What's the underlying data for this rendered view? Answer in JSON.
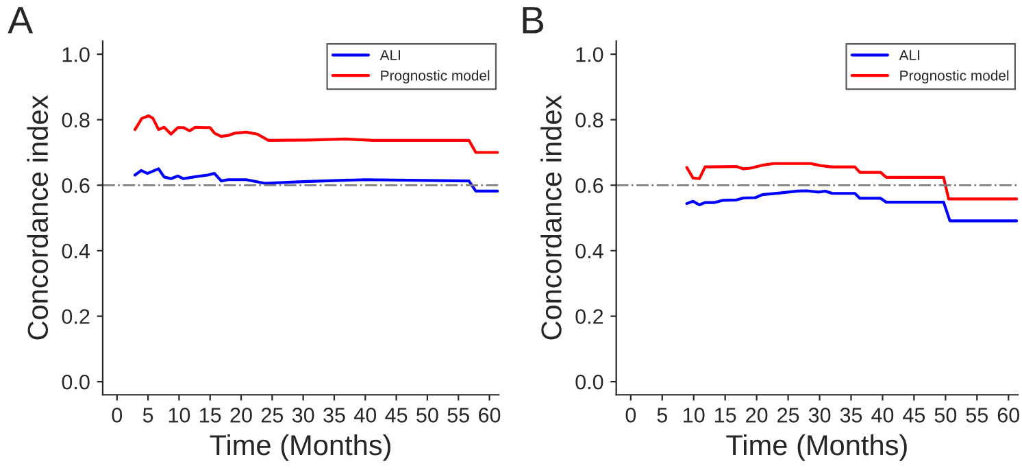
{
  "chart_data": [
    {
      "type": "line",
      "title": "A",
      "xlabel": "Time (Months)",
      "ylabel": "Concordance index",
      "xlim": [
        -2.3,
        61.5
      ],
      "xticks": [
        0,
        5,
        10,
        15,
        20,
        25,
        30,
        35,
        40,
        45,
        50,
        55,
        60
      ],
      "ylim": [
        -0.04,
        1.04
      ],
      "yticks": [
        {
          "value": 0,
          "label": "0.0"
        },
        {
          "value": 0.2,
          "label": "0.2"
        },
        {
          "value": 0.4,
          "label": "0.4"
        },
        {
          "value": 0.6,
          "label": "0.6"
        },
        {
          "value": 0.8,
          "label": "0.8"
        },
        {
          "value": 1.0,
          "label": "1.0"
        }
      ],
      "grid": false,
      "legend": "top right",
      "marker": "none",
      "line_style": "solid",
      "ref_lines": [
        {
          "axis": "y",
          "value": 0.6,
          "color": "#808080",
          "line_style": "dashdot"
        }
      ],
      "series": [
        {
          "name": "ALI",
          "color": "#0000ff",
          "x": [
            2.9,
            3.9,
            4.9,
            6.7,
            7.6,
            8.7,
            9.8,
            10.7,
            12.7,
            14.6,
            15.7,
            16.8,
            17.9,
            20.8,
            23.8,
            30,
            40,
            56.7,
            57.8,
            61.3
          ],
          "values": [
            0.631,
            0.645,
            0.636,
            0.65,
            0.625,
            0.62,
            0.628,
            0.62,
            0.626,
            0.631,
            0.636,
            0.613,
            0.617,
            0.617,
            0.606,
            0.611,
            0.617,
            0.613,
            0.582,
            0.582
          ]
        },
        {
          "name": "Prognostic model",
          "color": "#ff0000",
          "x": [
            2.9,
            4.0,
            5.1,
            5.8,
            6.7,
            7.6,
            8.7,
            9.8,
            10.7,
            11.7,
            12.6,
            14.2,
            15.0,
            15.7,
            16.8,
            17.9,
            19.0,
            20.8,
            22.6,
            24.4,
            31.0,
            36.9,
            41.3,
            56.7,
            57.8,
            61.3
          ],
          "values": [
            0.77,
            0.804,
            0.812,
            0.804,
            0.77,
            0.777,
            0.756,
            0.776,
            0.776,
            0.766,
            0.777,
            0.776,
            0.776,
            0.759,
            0.749,
            0.752,
            0.759,
            0.762,
            0.756,
            0.737,
            0.738,
            0.741,
            0.737,
            0.737,
            0.7,
            0.7
          ]
        }
      ]
    },
    {
      "type": "line",
      "title": "B",
      "xlabel": "Time (Months)",
      "ylabel": "Concordance index",
      "xlim": [
        -2.3,
        61.5
      ],
      "xticks": [
        0,
        5,
        10,
        15,
        20,
        25,
        30,
        35,
        40,
        45,
        50,
        55,
        60
      ],
      "ylim": [
        -0.04,
        1.04
      ],
      "yticks": [
        {
          "value": 0,
          "label": "0.0"
        },
        {
          "value": 0.2,
          "label": "0.2"
        },
        {
          "value": 0.4,
          "label": "0.4"
        },
        {
          "value": 0.6,
          "label": "0.6"
        },
        {
          "value": 0.8,
          "label": "0.8"
        },
        {
          "value": 1.0,
          "label": "1.0"
        }
      ],
      "grid": false,
      "legend": "top right",
      "marker": "none",
      "line_style": "solid",
      "ref_lines": [
        {
          "axis": "y",
          "value": 0.6,
          "color": "#808080",
          "line_style": "dashdot"
        }
      ],
      "series": [
        {
          "name": "ALI",
          "color": "#0000ff",
          "x": [
            8.9,
            9.9,
            10.9,
            11.8,
            13.2,
            14.7,
            16.8,
            17.9,
            19.8,
            20.9,
            23.5,
            26.5,
            28.0,
            29.8,
            30.9,
            32.0,
            35.6,
            36.4,
            39.7,
            40.6,
            49.7,
            50.7,
            61.3
          ],
          "values": [
            0.544,
            0.551,
            0.54,
            0.547,
            0.547,
            0.554,
            0.555,
            0.561,
            0.562,
            0.571,
            0.576,
            0.582,
            0.583,
            0.579,
            0.582,
            0.575,
            0.575,
            0.56,
            0.56,
            0.548,
            0.548,
            0.491,
            0.491
          ]
        },
        {
          "name": "Prognostic model",
          "color": "#ff0000",
          "x": [
            8.9,
            9.9,
            10.9,
            11.8,
            16.8,
            17.9,
            19.0,
            20.9,
            22.7,
            28.6,
            30.1,
            31.9,
            35.6,
            36.4,
            39.7,
            40.6,
            49.7,
            50.5,
            61.3
          ],
          "values": [
            0.654,
            0.622,
            0.62,
            0.656,
            0.657,
            0.65,
            0.652,
            0.661,
            0.666,
            0.666,
            0.66,
            0.656,
            0.656,
            0.639,
            0.639,
            0.624,
            0.624,
            0.558,
            0.558
          ]
        }
      ]
    }
  ]
}
